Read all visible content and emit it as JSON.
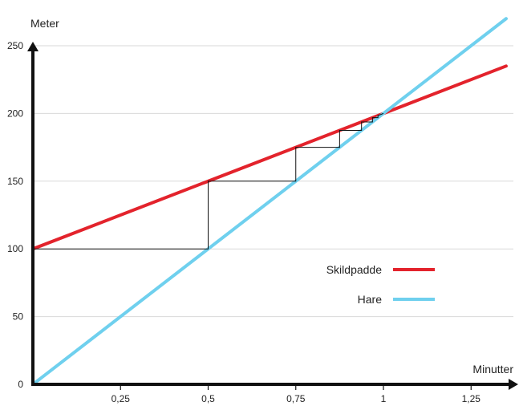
{
  "chart_data": {
    "type": "line",
    "title": "",
    "xlabel": "Minutter",
    "ylabel": "Meter",
    "xlim": [
      0,
      1.35
    ],
    "ylim": [
      0,
      250
    ],
    "x_ticks": [
      0.25,
      0.5,
      0.75,
      1,
      1.25
    ],
    "x_tick_labels": [
      "0,25",
      "0,5",
      "0,75",
      "1",
      "1,25"
    ],
    "y_ticks": [
      0,
      50,
      100,
      150,
      200,
      250
    ],
    "y_tick_labels": [
      "0",
      "50",
      "100",
      "150",
      "200",
      "250"
    ],
    "grid": true,
    "legend_placement": "center-right",
    "series": [
      {
        "name": "Skildpadde",
        "color": "#e3232c",
        "x": [
          0,
          1.35
        ],
        "y": [
          100,
          235
        ]
      },
      {
        "name": "Hare",
        "color": "#6fd0ee",
        "x": [
          0,
          1.35
        ],
        "y": [
          0,
          270
        ]
      }
    ],
    "zeno_steps": {
      "color": "#111111",
      "points": [
        [
          0,
          100
        ],
        [
          0.5,
          100
        ],
        [
          0.5,
          150
        ],
        [
          0.75,
          150
        ],
        [
          0.75,
          175
        ],
        [
          0.875,
          175
        ],
        [
          0.875,
          187.5
        ],
        [
          0.9375,
          187.5
        ],
        [
          0.9375,
          193.75
        ],
        [
          0.96875,
          193.75
        ],
        [
          0.96875,
          196.875
        ],
        [
          0.984375,
          196.875
        ],
        [
          0.984375,
          198.4375
        ],
        [
          1,
          200
        ]
      ]
    }
  }
}
